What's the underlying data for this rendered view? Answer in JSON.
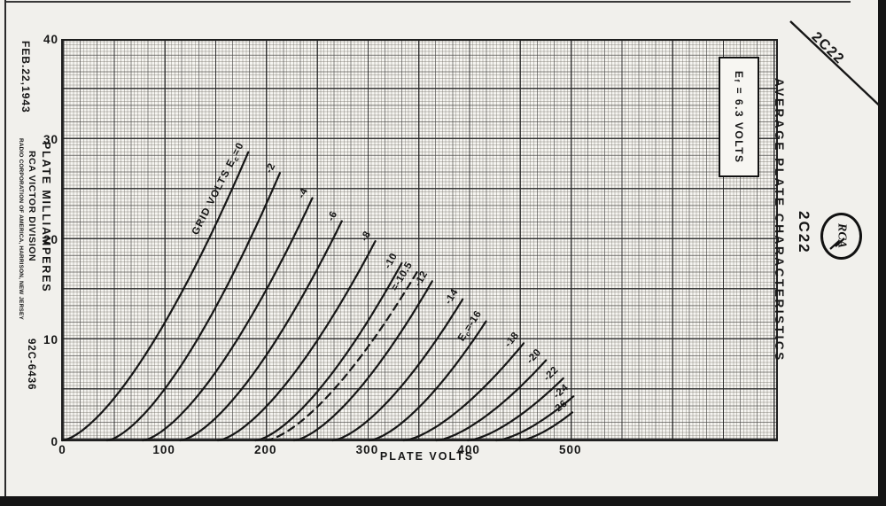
{
  "page": {
    "corner_tube_label": "2C22",
    "side_tube_label": "2C22",
    "logo_text": "RCA",
    "left_column": {
      "date": "FEB.22,1943",
      "division": "RCA VICTOR DIVISION",
      "company": "RADIO CORPORATION OF AMERICA, HARRISON, NEW JERSEY",
      "drawing_number": "92C-6436"
    }
  },
  "chart_data": {
    "type": "line",
    "title": "AVERAGE PLATE CHARACTERISTICS",
    "xlabel": "PLATE VOLTS",
    "ylabel": "PLATE MILLIAMPERES",
    "x_ticks": [
      0,
      100,
      200,
      300,
      400,
      500
    ],
    "y_ticks": [
      0,
      10,
      20,
      30,
      40
    ],
    "xlim": [
      0,
      700
    ],
    "ylim": [
      0,
      40
    ],
    "grid": true,
    "condition": "Ef = 6.3 VOLTS",
    "series_model": "each curve: plate mA = k*(plate volts - v_start)^1.5, drawn from (v_start, 0 mA) up to end point [volts, mA]",
    "series": [
      {
        "label": "GRID VOLTS Ec=0",
        "grid_volts": 0,
        "v_start": 0,
        "end": [
          183,
          28.8
        ],
        "dashed": false
      },
      {
        "label": "-2",
        "grid_volts": -2,
        "v_start": 44,
        "end": [
          214,
          26.7
        ],
        "dashed": false
      },
      {
        "label": "-4",
        "grid_volts": -4,
        "v_start": 79,
        "end": [
          246,
          24.2
        ],
        "dashed": false
      },
      {
        "label": "-6",
        "grid_volts": -6,
        "v_start": 116,
        "end": [
          275,
          21.9
        ],
        "dashed": false
      },
      {
        "label": "-8",
        "grid_volts": -8,
        "v_start": 153,
        "end": [
          308,
          19.9
        ],
        "dashed": false
      },
      {
        "label": "-10",
        "grid_volts": -10,
        "v_start": 190,
        "end": [
          334,
          17.7
        ],
        "dashed": false
      },
      {
        "label": "=-10.5",
        "grid_volts": -10.5,
        "v_start": 200,
        "end": [
          349,
          16.8
        ],
        "dashed": true
      },
      {
        "label": "-12",
        "grid_volts": -12,
        "v_start": 228,
        "end": [
          364,
          15.9
        ],
        "dashed": false
      },
      {
        "label": "-14",
        "grid_volts": -14,
        "v_start": 266,
        "end": [
          394,
          14.1
        ],
        "dashed": false
      },
      {
        "label": "Ec=-16",
        "grid_volts": -16,
        "v_start": 302,
        "end": [
          417,
          11.9
        ],
        "dashed": false
      },
      {
        "label": "-18",
        "grid_volts": -18,
        "v_start": 336,
        "end": [
          454,
          9.7
        ],
        "dashed": false
      },
      {
        "label": "-20",
        "grid_volts": -20,
        "v_start": 368,
        "end": [
          476,
          8.0
        ],
        "dashed": false
      },
      {
        "label": "-22",
        "grid_volts": -22,
        "v_start": 399,
        "end": [
          493,
          6.2
        ],
        "dashed": false
      },
      {
        "label": "-24",
        "grid_volts": -24,
        "v_start": 427,
        "end": [
          503,
          4.4
        ],
        "dashed": false
      },
      {
        "label": "-26",
        "grid_volts": -26,
        "v_start": 450,
        "end": [
          502,
          2.8
        ],
        "dashed": false
      }
    ],
    "ink_color": "#161616",
    "paper_color": "#f6f5f1"
  }
}
